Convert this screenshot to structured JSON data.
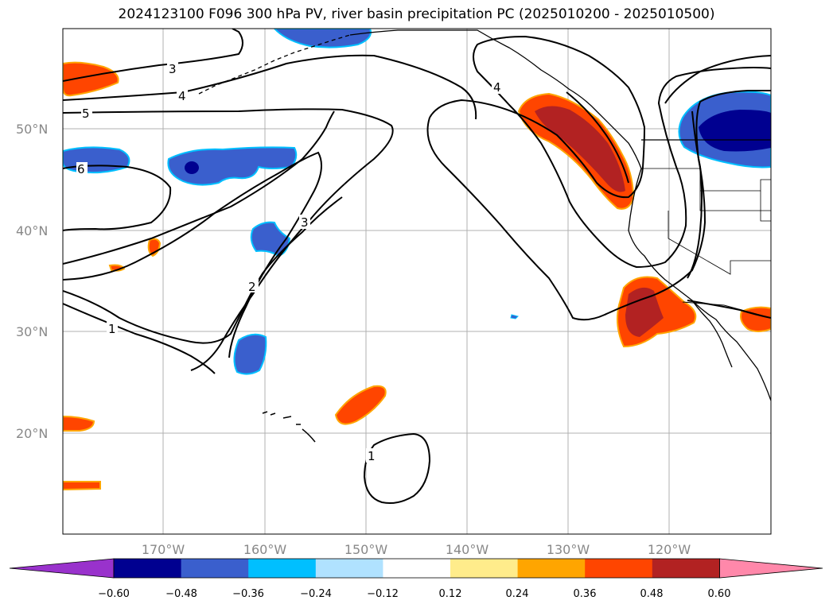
{
  "title": "2024123100 F096 300 hPa PV, river basin precipitation PC (2025010200 - 2025010500)",
  "lat_labels": [
    "50°N",
    "40°N",
    "30°N",
    "20°N"
  ],
  "lon_labels": [
    "170°W",
    "160°W",
    "150°W",
    "140°W",
    "130°W",
    "120°W"
  ],
  "colorbar": {
    "ticks": [
      "−0.60",
      "−0.48",
      "−0.36",
      "−0.24",
      "−0.12",
      "0.12",
      "0.24",
      "0.36",
      "0.48",
      "0.60"
    ],
    "colors": [
      "#9932cc",
      "#000090",
      "#3a5fcd",
      "#00bfff",
      "#b0e2ff",
      "#ffffff",
      "#ffec8b",
      "#ffa500",
      "#ff4500",
      "#b22222",
      "#ff88aa"
    ]
  },
  "contour_labels": [
    "3",
    "4",
    "5",
    "6",
    "3",
    "2",
    "1",
    "4",
    "1"
  ],
  "colors": {
    "land_outline": "#000000",
    "grid": "#b0b0b0",
    "contour": "#000000"
  }
}
